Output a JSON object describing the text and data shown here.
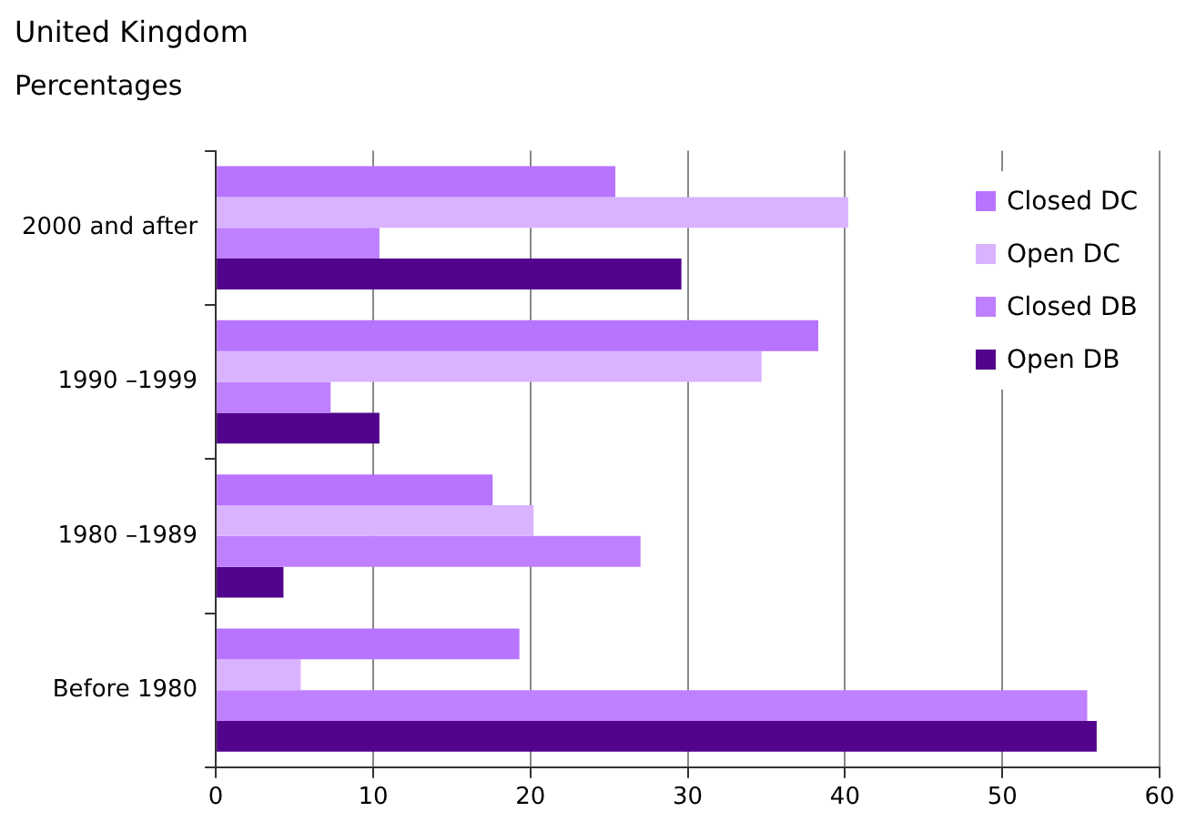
{
  "chart_data": {
    "type": "bar",
    "orientation": "horizontal",
    "title": "United Kingdom",
    "subtitle": "Percentages",
    "categories": [
      "2000 and after",
      "1990 –1999",
      "1980 –1989",
      "Before 1980"
    ],
    "series": [
      {
        "name": "Closed DC",
        "color": "#b873ff",
        "values": [
          25.4,
          38.3,
          17.6,
          19.3
        ]
      },
      {
        "name": "Open DC",
        "color": "#dab3ff",
        "values": [
          40.2,
          34.7,
          20.2,
          5.4
        ]
      },
      {
        "name": "Closed DB",
        "color": "#bf7fff",
        "values": [
          10.4,
          7.3,
          27.0,
          55.4
        ]
      },
      {
        "name": "Open DB",
        "color": "#52048c",
        "values": [
          29.6,
          10.4,
          4.3,
          56.0
        ]
      }
    ],
    "xlim": [
      0,
      60
    ],
    "xticks": [
      0,
      10,
      20,
      30,
      40,
      50,
      60
    ],
    "grid": "x",
    "legend": "top right"
  }
}
